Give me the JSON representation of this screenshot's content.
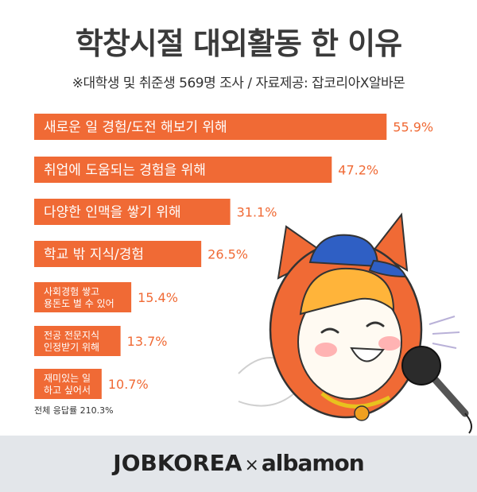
{
  "title": "학창시절 대외활동 한 이유",
  "subtitle": "※대학생 및 취준생 569명 조사 / 자료제공: 잡코리아X알바몬",
  "total_note": "전체 응답률 210.3%",
  "footer": {
    "brand1": "JOBKOREA",
    "times": "×",
    "brand2": "albamon"
  },
  "colors": {
    "bar": "#f06a35",
    "value_text": "#f06a35",
    "footer_bg": "#e3e6ea"
  },
  "chart_data": {
    "type": "bar",
    "orientation": "horizontal",
    "unit": "%",
    "categories": [
      [
        "새로운 일 경험/도전 해보기 위해"
      ],
      [
        "취업에 도움되는 경험을 위해"
      ],
      [
        "다양한 인맥을 쌓기 위해"
      ],
      [
        "학교 밖 지식/경험"
      ],
      [
        "사회경험 쌓고",
        "용돈도 벌 수 있어"
      ],
      [
        "전공 전문지식",
        "인정받기 위해"
      ],
      [
        "재미있는 일",
        "하고 싶어서"
      ]
    ],
    "values": [
      55.9,
      47.2,
      31.1,
      26.5,
      15.4,
      13.7,
      10.7
    ],
    "value_labels": [
      "55.9%",
      "47.2%",
      "31.1%",
      "26.5%",
      "15.4%",
      "13.7%",
      "10.7%"
    ],
    "xlim": [
      0,
      60
    ]
  }
}
